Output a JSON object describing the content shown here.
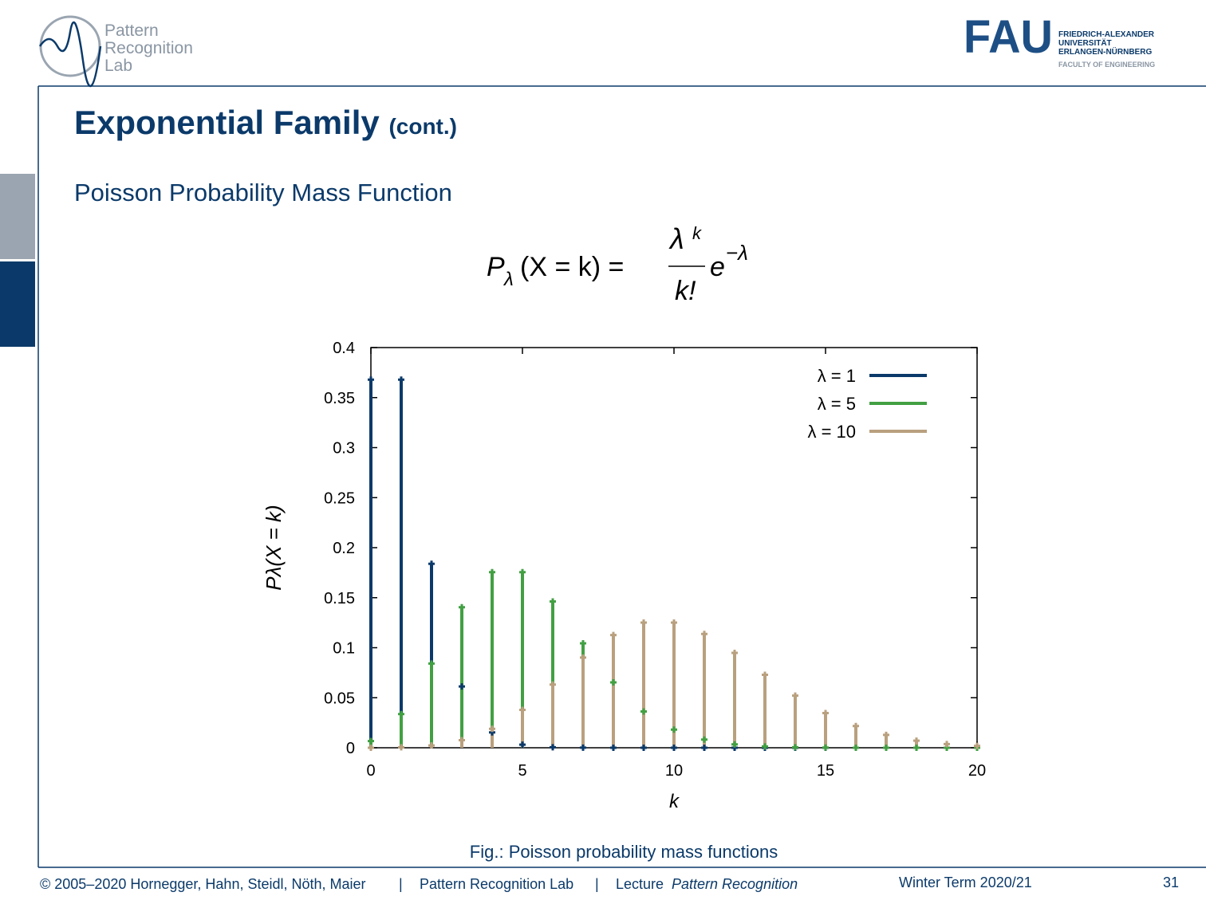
{
  "header": {
    "lab_logo": [
      "Pattern",
      "Recognition",
      "Lab"
    ],
    "fau_logo": "FAU",
    "university": [
      "FRIEDRICH-ALEXANDER",
      "UNIVERSITÄT",
      "ERLANGEN-NÜRNBERG"
    ],
    "faculty": "FACULTY OF ENGINEERING"
  },
  "slide": {
    "title": "Exponential Family",
    "title_suffix": "(cont.)",
    "subtitle": "Poisson Probability Mass Function",
    "formula": {
      "lhs_p": "P",
      "lhs_sub": "λ",
      "lhs_rest": "(X = k) =",
      "num_base": "λ",
      "num_exp": "k",
      "den": "k!",
      "e": "e",
      "e_exp": "−λ"
    },
    "caption": "Fig.: Poisson probability mass functions"
  },
  "chart_data": {
    "type": "stem",
    "xlabel": "k",
    "ylabel": "Pλ(X = k)",
    "x": [
      0,
      1,
      2,
      3,
      4,
      5,
      6,
      7,
      8,
      9,
      10,
      11,
      12,
      13,
      14,
      15,
      16,
      17,
      18,
      19,
      20
    ],
    "series": [
      {
        "name": "λ = 1",
        "color": "#0b3a6a",
        "values": [
          0.3679,
          0.3679,
          0.1839,
          0.0613,
          0.0153,
          0.0031,
          0.0005,
          0.0001,
          0,
          0,
          0,
          0,
          0,
          0,
          0,
          0,
          0,
          0,
          0,
          0,
          0
        ]
      },
      {
        "name": "λ = 5",
        "color": "#42a043",
        "values": [
          0.0067,
          0.0337,
          0.0842,
          0.1404,
          0.1755,
          0.1755,
          0.1462,
          0.1044,
          0.0653,
          0.0363,
          0.0181,
          0.0082,
          0.0034,
          0.0013,
          0.0005,
          0.0002,
          0,
          0,
          0,
          0,
          0
        ]
      },
      {
        "name": "λ = 10",
        "color": "#b9a07e",
        "values": [
          0,
          0.0005,
          0.0023,
          0.0076,
          0.0189,
          0.0378,
          0.0631,
          0.0901,
          0.1126,
          0.1251,
          0.1251,
          0.1137,
          0.0948,
          0.0729,
          0.0521,
          0.0347,
          0.0217,
          0.0128,
          0.0071,
          0.0037,
          0.0019
        ]
      }
    ],
    "xlim": [
      0,
      20
    ],
    "xticks": [
      0,
      5,
      10,
      15,
      20
    ],
    "ylim": [
      0,
      0.4
    ],
    "yticks": [
      0,
      0.05,
      0.1,
      0.15,
      0.2,
      0.25,
      0.3,
      0.35,
      0.4
    ],
    "legend": "upper right"
  },
  "footer": {
    "copyright": "© 2005–2020 Hornegger, Hahn, Steidl, Nöth, Maier",
    "separator": "|",
    "lab": "Pattern Recognition Lab",
    "lecture": "Lecture",
    "lecture_name": "Pattern Recognition",
    "term": "Winter Term 2020/21",
    "page": "31"
  }
}
